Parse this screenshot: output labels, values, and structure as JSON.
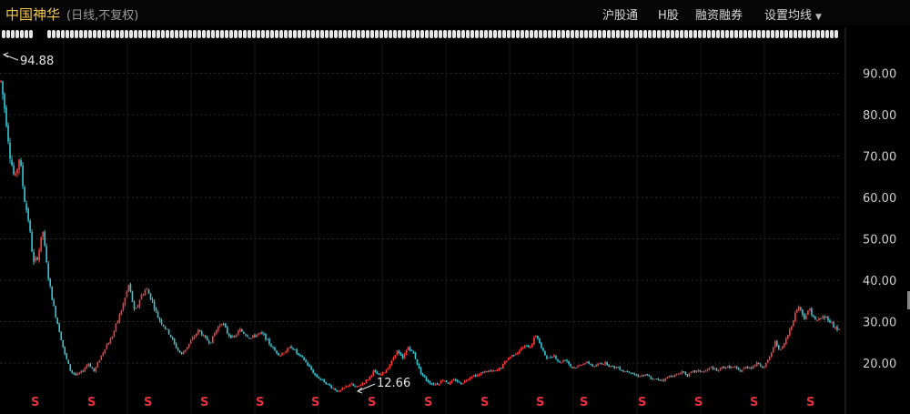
{
  "header": {
    "stock_name": "中国神华",
    "subtitle": "(日线,不复权)",
    "menu": [
      {
        "label": "沪股通"
      },
      {
        "label": "H股"
      },
      {
        "label": "融资融券"
      },
      {
        "label": "设置均线"
      }
    ]
  },
  "colors": {
    "background": "#000000",
    "up": "#ff3b3b",
    "down": "#33c8d6",
    "grid": "#2a2a2a",
    "stock_name": "#f2c84b",
    "dividend": "#e8313a"
  },
  "chart_data": {
    "type": "candlestick",
    "title": "中国神华 (日线,不复权)",
    "y_ticks": [
      "20.00",
      "30.00",
      "40.00",
      "50.00",
      "60.00",
      "70.00",
      "80.00",
      "90.00"
    ],
    "ylim": [
      11,
      99
    ],
    "grid": true,
    "y_axis_position": "right",
    "annotations": [
      {
        "label": "94.88",
        "type": "max",
        "value": 94.88
      },
      {
        "label": "12.66",
        "type": "min",
        "value": 12.66
      }
    ],
    "dividend_marker": "S",
    "dividend_count": 15,
    "price_path": [
      [
        0,
        88
      ],
      [
        0.4,
        80
      ],
      [
        0.8,
        70
      ],
      [
        1.2,
        64
      ],
      [
        1.6,
        70
      ],
      [
        2.0,
        60
      ],
      [
        2.4,
        54
      ],
      [
        2.8,
        44
      ],
      [
        3.2,
        46
      ],
      [
        3.6,
        52
      ],
      [
        4.0,
        42
      ],
      [
        4.5,
        34
      ],
      [
        5.0,
        28
      ],
      [
        5.5,
        22
      ],
      [
        6.0,
        18
      ],
      [
        6.5,
        17
      ],
      [
        7.0,
        18
      ],
      [
        7.5,
        20
      ],
      [
        8.0,
        18
      ],
      [
        8.5,
        21
      ],
      [
        9.0,
        24
      ],
      [
        9.5,
        26
      ],
      [
        10.0,
        30
      ],
      [
        10.5,
        34
      ],
      [
        11.0,
        39
      ],
      [
        11.5,
        32
      ],
      [
        12.0,
        36
      ],
      [
        12.5,
        38
      ],
      [
        13.0,
        35
      ],
      [
        13.5,
        31
      ],
      [
        14.0,
        29
      ],
      [
        14.5,
        27
      ],
      [
        15.0,
        24
      ],
      [
        15.5,
        22
      ],
      [
        16.0,
        24
      ],
      [
        16.5,
        26
      ],
      [
        17.0,
        28
      ],
      [
        17.5,
        26
      ],
      [
        18.0,
        25
      ],
      [
        18.5,
        28
      ],
      [
        19.0,
        30
      ],
      [
        19.5,
        27
      ],
      [
        20.0,
        26
      ],
      [
        20.5,
        28
      ],
      [
        21.0,
        27
      ],
      [
        21.5,
        26
      ],
      [
        22.0,
        27
      ],
      [
        22.5,
        27
      ],
      [
        23.0,
        25
      ],
      [
        23.5,
        23
      ],
      [
        24.0,
        22
      ],
      [
        24.5,
        23
      ],
      [
        25.0,
        24
      ],
      [
        25.5,
        22
      ],
      [
        26.0,
        21
      ],
      [
        26.5,
        19
      ],
      [
        27.0,
        17
      ],
      [
        27.5,
        16
      ],
      [
        28.0,
        15
      ],
      [
        28.5,
        14
      ],
      [
        29.0,
        13
      ],
      [
        29.5,
        14
      ],
      [
        30.0,
        15
      ],
      [
        30.5,
        14
      ],
      [
        31.0,
        15
      ],
      [
        31.5,
        16
      ],
      [
        32.0,
        18
      ],
      [
        32.5,
        17
      ],
      [
        33.0,
        18
      ],
      [
        33.5,
        20
      ],
      [
        34.0,
        23
      ],
      [
        34.5,
        21
      ],
      [
        35.0,
        24
      ],
      [
        35.5,
        22
      ],
      [
        36.0,
        18
      ],
      [
        36.5,
        16
      ],
      [
        37.0,
        15
      ],
      [
        37.5,
        15
      ],
      [
        38.0,
        16
      ],
      [
        38.5,
        15
      ],
      [
        39.0,
        16
      ],
      [
        39.5,
        15
      ],
      [
        40.0,
        16
      ],
      [
        40.5,
        17
      ],
      [
        41.0,
        17
      ],
      [
        41.5,
        18
      ],
      [
        42.0,
        18
      ],
      [
        42.5,
        18
      ],
      [
        43.0,
        19
      ],
      [
        43.5,
        21
      ],
      [
        44.0,
        22
      ],
      [
        44.5,
        23
      ],
      [
        45.0,
        24
      ],
      [
        45.5,
        24
      ],
      [
        46.0,
        27
      ],
      [
        46.5,
        23
      ],
      [
        47.0,
        21
      ],
      [
        47.5,
        22
      ],
      [
        48.0,
        20
      ],
      [
        48.5,
        21
      ],
      [
        49.0,
        19
      ],
      [
        49.5,
        19
      ],
      [
        50.0,
        20
      ],
      [
        50.5,
        20
      ],
      [
        51.0,
        19
      ],
      [
        51.5,
        20
      ],
      [
        52.0,
        20
      ],
      [
        52.5,
        19
      ],
      [
        53.0,
        19
      ],
      [
        53.5,
        18
      ],
      [
        54.0,
        18
      ],
      [
        54.5,
        17
      ],
      [
        55.0,
        17
      ],
      [
        55.5,
        17
      ],
      [
        56.0,
        16
      ],
      [
        56.5,
        16
      ],
      [
        57.0,
        16
      ],
      [
        57.5,
        17
      ],
      [
        58.0,
        17
      ],
      [
        58.5,
        18
      ],
      [
        59.0,
        17
      ],
      [
        59.5,
        18
      ],
      [
        60.0,
        18
      ],
      [
        60.5,
        18
      ],
      [
        61.0,
        19
      ],
      [
        61.5,
        18
      ],
      [
        62.0,
        19
      ],
      [
        62.5,
        19
      ],
      [
        63.0,
        19
      ],
      [
        63.5,
        18
      ],
      [
        64.0,
        19
      ],
      [
        64.5,
        19
      ],
      [
        65.0,
        20
      ],
      [
        65.5,
        19
      ],
      [
        66.0,
        21
      ],
      [
        66.5,
        25
      ],
      [
        67.0,
        23
      ],
      [
        67.5,
        26
      ],
      [
        68.0,
        30
      ],
      [
        68.5,
        34
      ],
      [
        69.0,
        31
      ],
      [
        69.5,
        33
      ],
      [
        70.0,
        30
      ],
      [
        70.5,
        31
      ],
      [
        71.0,
        31
      ],
      [
        71.5,
        29
      ],
      [
        72.0,
        28
      ]
    ]
  }
}
